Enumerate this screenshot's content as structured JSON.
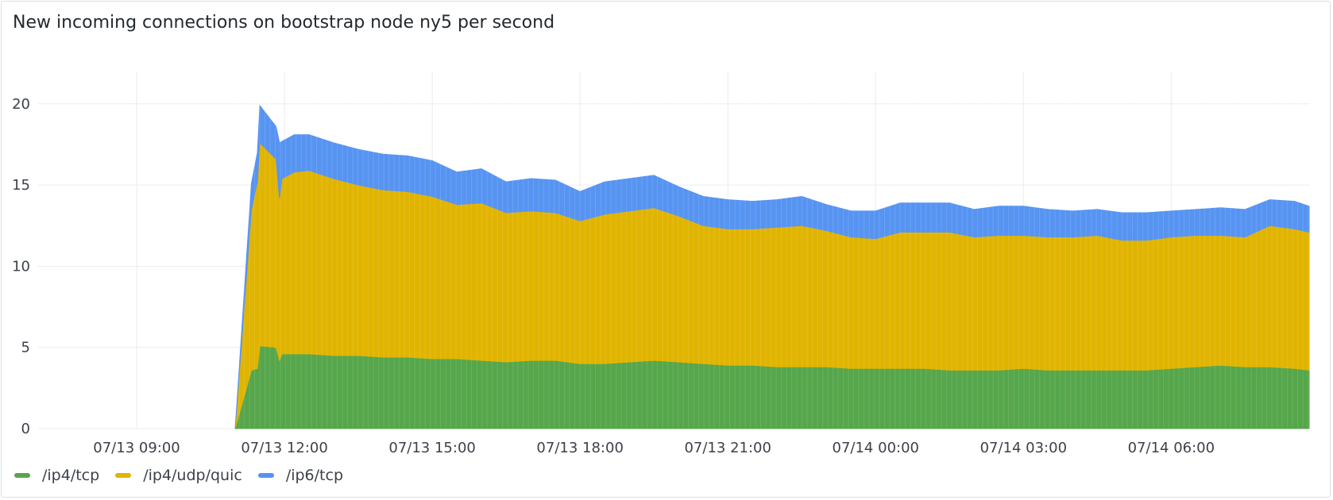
{
  "panel": {
    "title": "New incoming connections on bootstrap node ny5 per second"
  },
  "colors": {
    "ip4_tcp": "#56a64b",
    "ip4_udp_quic": "#e0b400",
    "ip6_tcp": "#5794f2",
    "grid": "#ebebec"
  },
  "chart_data": {
    "type": "area",
    "stacked": true,
    "title": "New incoming connections on bootstrap node ny5 per second",
    "xlabel": "",
    "ylabel": "",
    "x_unit": "hours since 07/13 00:00",
    "xlim": [
      7.0,
      32.8
    ],
    "ylim": [
      0,
      22
    ],
    "yticks": [
      0,
      5,
      10,
      15,
      20
    ],
    "xticks": [
      {
        "label": "07/13 09:00",
        "value": 9
      },
      {
        "label": "07/13 12:00",
        "value": 12
      },
      {
        "label": "07/13 15:00",
        "value": 15
      },
      {
        "label": "07/13 18:00",
        "value": 18
      },
      {
        "label": "07/13 21:00",
        "value": 21
      },
      {
        "label": "07/14 00:00",
        "value": 24
      },
      {
        "label": "07/14 03:00",
        "value": 27
      },
      {
        "label": "07/14 06:00",
        "value": 30
      }
    ],
    "grid": true,
    "legend_position": "bottom-left",
    "x": [
      11.0,
      11.33,
      11.45,
      11.5,
      11.83,
      11.9,
      11.95,
      12.2,
      12.5,
      13.0,
      13.5,
      14.0,
      14.5,
      15.0,
      15.5,
      16.0,
      16.5,
      17.0,
      17.5,
      18.0,
      18.5,
      19.0,
      19.5,
      20.0,
      20.5,
      21.0,
      21.5,
      22.0,
      22.5,
      23.0,
      23.5,
      24.0,
      24.5,
      25.0,
      25.5,
      26.0,
      26.5,
      27.0,
      27.5,
      28.0,
      28.5,
      29.0,
      29.5,
      30.0,
      30.5,
      31.0,
      31.5,
      32.0,
      32.5,
      32.8
    ],
    "series": [
      {
        "name": "/ip4/tcp",
        "values": [
          0.0,
          3.6,
          3.7,
          5.1,
          5.0,
          4.2,
          4.6,
          4.6,
          4.6,
          4.5,
          4.5,
          4.4,
          4.4,
          4.3,
          4.3,
          4.2,
          4.1,
          4.2,
          4.2,
          4.0,
          4.0,
          4.1,
          4.2,
          4.1,
          4.0,
          3.9,
          3.9,
          3.8,
          3.8,
          3.8,
          3.7,
          3.7,
          3.7,
          3.7,
          3.6,
          3.6,
          3.6,
          3.7,
          3.6,
          3.6,
          3.6,
          3.6,
          3.6,
          3.7,
          3.8,
          3.9,
          3.8,
          3.8,
          3.7,
          3.6
        ]
      },
      {
        "name": "/ip4/udp/quic",
        "values": [
          0.0,
          9.9,
          11.5,
          12.5,
          11.6,
          10.0,
          10.8,
          11.2,
          11.3,
          10.9,
          10.5,
          10.3,
          10.2,
          10.0,
          9.5,
          9.7,
          9.2,
          9.2,
          9.1,
          8.8,
          9.2,
          9.3,
          9.4,
          9.0,
          8.5,
          8.4,
          8.4,
          8.6,
          8.7,
          8.4,
          8.1,
          8.0,
          8.4,
          8.4,
          8.5,
          8.2,
          8.3,
          8.2,
          8.2,
          8.2,
          8.3,
          8.0,
          8.0,
          8.1,
          8.1,
          8.0,
          8.0,
          8.7,
          8.6,
          8.5
        ]
      },
      {
        "name": "/ip6/tcp",
        "values": [
          0.0,
          1.6,
          1.8,
          2.3,
          2.0,
          3.4,
          2.3,
          2.3,
          2.2,
          2.2,
          2.2,
          2.2,
          2.2,
          2.2,
          2.0,
          2.1,
          1.9,
          2.0,
          2.0,
          1.8,
          2.0,
          2.0,
          2.0,
          1.8,
          1.8,
          1.8,
          1.7,
          1.7,
          1.8,
          1.6,
          1.6,
          1.7,
          1.8,
          1.8,
          1.8,
          1.7,
          1.8,
          1.8,
          1.7,
          1.6,
          1.6,
          1.7,
          1.7,
          1.6,
          1.6,
          1.7,
          1.7,
          1.6,
          1.7,
          1.6
        ]
      }
    ]
  }
}
